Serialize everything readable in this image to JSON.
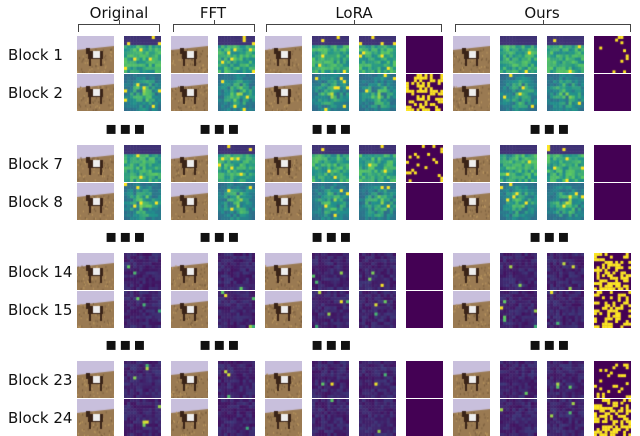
{
  "columns": [
    {
      "label": "Original",
      "tiles": [
        "image",
        "attention-map"
      ]
    },
    {
      "label": "FFT",
      "tiles": [
        "image",
        "attention-map"
      ]
    },
    {
      "label": "LoRA",
      "tiles": [
        "image",
        "attention-map",
        "attention-map",
        "mask"
      ]
    },
    {
      "label": "Ours",
      "tiles": [
        "image",
        "attention-map",
        "attention-map",
        "mask"
      ]
    }
  ],
  "rows": [
    {
      "label": "Block 1"
    },
    {
      "label": "Block 2"
    },
    {
      "label": "Block 7"
    },
    {
      "label": "Block 8"
    },
    {
      "label": "Block 14"
    },
    {
      "label": "Block 15"
    },
    {
      "label": "Block 23"
    },
    {
      "label": "Block 24"
    }
  ],
  "ellipsis": "▪▪▪",
  "colors": {
    "mask_background": "#440154",
    "mask_active": "#fde725",
    "colormap": "viridis"
  }
}
